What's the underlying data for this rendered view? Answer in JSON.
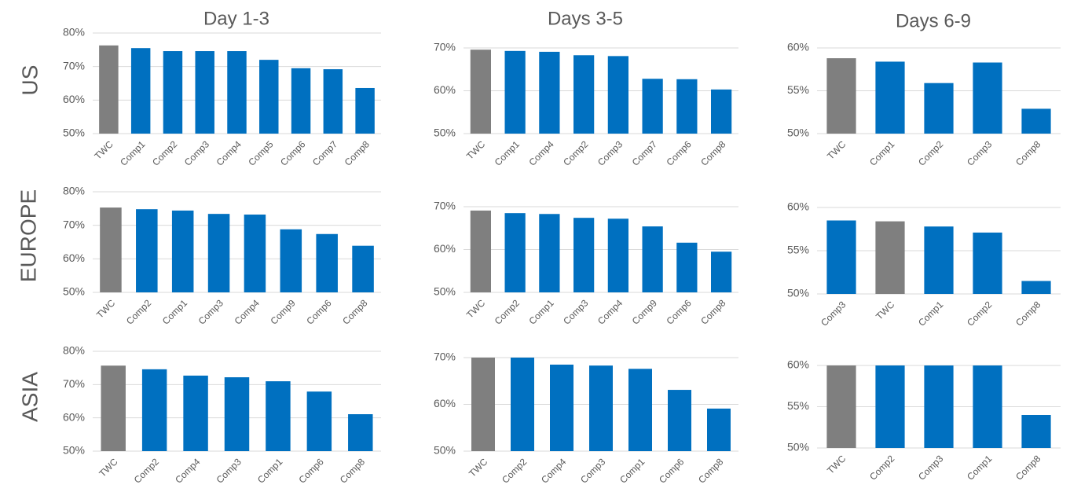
{
  "column_titles": [
    "Day 1-3",
    "Days 3-5",
    "Days 6-9"
  ],
  "row_labels": [
    "US",
    "EUROPE",
    "ASIA"
  ],
  "chart_data": [
    {
      "type": "bar",
      "categories": [
        "TWC",
        "Comp1",
        "Comp2",
        "Comp3",
        "Comp4",
        "Comp5",
        "Comp6",
        "Comp7",
        "Comp8"
      ],
      "values": [
        76.3,
        75.5,
        74.6,
        74.6,
        74.6,
        72.0,
        69.5,
        69.2,
        63.6
      ],
      "colors": [
        "#7f7f7f",
        "#0070c0",
        "#0070c0",
        "#0070c0",
        "#0070c0",
        "#0070c0",
        "#0070c0",
        "#0070c0",
        "#0070c0"
      ],
      "ylim": [
        50,
        80
      ],
      "yticks": [
        {
          "value": 50,
          "label": "50%"
        },
        {
          "value": 60,
          "label": "60%"
        },
        {
          "value": 70,
          "label": "70%"
        },
        {
          "value": 80,
          "label": "80%"
        }
      ],
      "grid": true
    },
    {
      "type": "bar",
      "categories": [
        "TWC",
        "Comp1",
        "Comp4",
        "Comp2",
        "Comp3",
        "Comp7",
        "Comp6",
        "Comp8"
      ],
      "values": [
        69.6,
        69.3,
        69.1,
        68.3,
        68.1,
        62.8,
        62.7,
        60.3
      ],
      "colors": [
        "#7f7f7f",
        "#0070c0",
        "#0070c0",
        "#0070c0",
        "#0070c0",
        "#0070c0",
        "#0070c0",
        "#0070c0"
      ],
      "ylim": [
        50,
        70
      ],
      "yticks": [
        {
          "value": 50,
          "label": "50%"
        },
        {
          "value": 60,
          "label": "60%"
        },
        {
          "value": 70,
          "label": "70%"
        }
      ],
      "grid": true
    },
    {
      "type": "bar",
      "categories": [
        "TWC",
        "Comp1",
        "Comp2",
        "Comp3",
        "Comp8"
      ],
      "values": [
        58.8,
        58.4,
        55.9,
        58.3,
        52.9
      ],
      "colors": [
        "#7f7f7f",
        "#0070c0",
        "#0070c0",
        "#0070c0",
        "#0070c0"
      ],
      "ylim": [
        50,
        60
      ],
      "yticks": [
        {
          "value": 50,
          "label": "50%"
        },
        {
          "value": 55,
          "label": "55%"
        },
        {
          "value": 60,
          "label": "60%"
        }
      ],
      "grid": true
    },
    {
      "type": "bar",
      "categories": [
        "TWC",
        "Comp2",
        "Comp1",
        "Comp3",
        "Comp4",
        "Comp9",
        "Comp6",
        "Comp8"
      ],
      "values": [
        75.3,
        74.8,
        74.4,
        73.4,
        73.2,
        68.8,
        67.4,
        63.9
      ],
      "colors": [
        "#7f7f7f",
        "#0070c0",
        "#0070c0",
        "#0070c0",
        "#0070c0",
        "#0070c0",
        "#0070c0",
        "#0070c0"
      ],
      "ylim": [
        50,
        80
      ],
      "yticks": [
        {
          "value": 50,
          "label": "50%"
        },
        {
          "value": 60,
          "label": "60%"
        },
        {
          "value": 70,
          "label": "70%"
        },
        {
          "value": 80,
          "label": "80%"
        }
      ],
      "grid": true
    },
    {
      "type": "bar",
      "categories": [
        "TWC",
        "Comp2",
        "Comp1",
        "Comp3",
        "Comp4",
        "Comp9",
        "Comp6",
        "Comp8"
      ],
      "values": [
        69.1,
        68.5,
        68.3,
        67.4,
        67.2,
        65.4,
        61.6,
        59.5
      ],
      "colors": [
        "#7f7f7f",
        "#0070c0",
        "#0070c0",
        "#0070c0",
        "#0070c0",
        "#0070c0",
        "#0070c0",
        "#0070c0"
      ],
      "ylim": [
        50,
        70
      ],
      "yticks": [
        {
          "value": 50,
          "label": "50%"
        },
        {
          "value": 60,
          "label": "60%"
        },
        {
          "value": 70,
          "label": "70%"
        }
      ],
      "grid": true
    },
    {
      "type": "bar",
      "categories": [
        "Comp3",
        "TWC",
        "Comp1",
        "Comp2",
        "Comp8"
      ],
      "values": [
        58.5,
        58.4,
        57.8,
        57.1,
        51.5
      ],
      "colors": [
        "#0070c0",
        "#7f7f7f",
        "#0070c0",
        "#0070c0",
        "#0070c0"
      ],
      "ylim": [
        50,
        60
      ],
      "yticks": [
        {
          "value": 50,
          "label": "50%"
        },
        {
          "value": 55,
          "label": "55%"
        },
        {
          "value": 60,
          "label": "60%"
        }
      ],
      "grid": true
    },
    {
      "type": "bar",
      "categories": [
        "TWC",
        "Comp2",
        "Comp4",
        "Comp3",
        "Comp1",
        "Comp6",
        "Comp8"
      ],
      "values": [
        75.7,
        74.6,
        72.7,
        72.2,
        71.0,
        67.9,
        61.1
      ],
      "colors": [
        "#7f7f7f",
        "#0070c0",
        "#0070c0",
        "#0070c0",
        "#0070c0",
        "#0070c0",
        "#0070c0"
      ],
      "ylim": [
        50,
        80
      ],
      "yticks": [
        {
          "value": 50,
          "label": "50%"
        },
        {
          "value": 60,
          "label": "60%"
        },
        {
          "value": 70,
          "label": "70%"
        },
        {
          "value": 80,
          "label": "80%"
        }
      ],
      "grid": true
    },
    {
      "type": "bar",
      "categories": [
        "TWC",
        "Comp2",
        "Comp4",
        "Comp3",
        "Comp1",
        "Comp6",
        "Comp8"
      ],
      "values": [
        70,
        70,
        68.5,
        68.3,
        67.6,
        63.1,
        59.1
      ],
      "colors": [
        "#7f7f7f",
        "#0070c0",
        "#0070c0",
        "#0070c0",
        "#0070c0",
        "#0070c0",
        "#0070c0"
      ],
      "ylim": [
        50,
        70
      ],
      "yticks": [
        {
          "value": 50,
          "label": "50%"
        },
        {
          "value": 60,
          "label": "60%"
        },
        {
          "value": 70,
          "label": "70%"
        }
      ],
      "grid": true
    },
    {
      "type": "bar",
      "categories": [
        "TWC",
        "Comp2",
        "Comp3",
        "Comp1",
        "Comp8"
      ],
      "values": [
        60,
        60,
        60,
        60,
        54.0
      ],
      "colors": [
        "#7f7f7f",
        "#0070c0",
        "#0070c0",
        "#0070c0",
        "#0070c0"
      ],
      "ylim": [
        50,
        60
      ],
      "yticks": [
        {
          "value": 50,
          "label": "50%"
        },
        {
          "value": 55,
          "label": "55%"
        },
        {
          "value": 60,
          "label": "60%"
        }
      ],
      "grid": true
    }
  ]
}
